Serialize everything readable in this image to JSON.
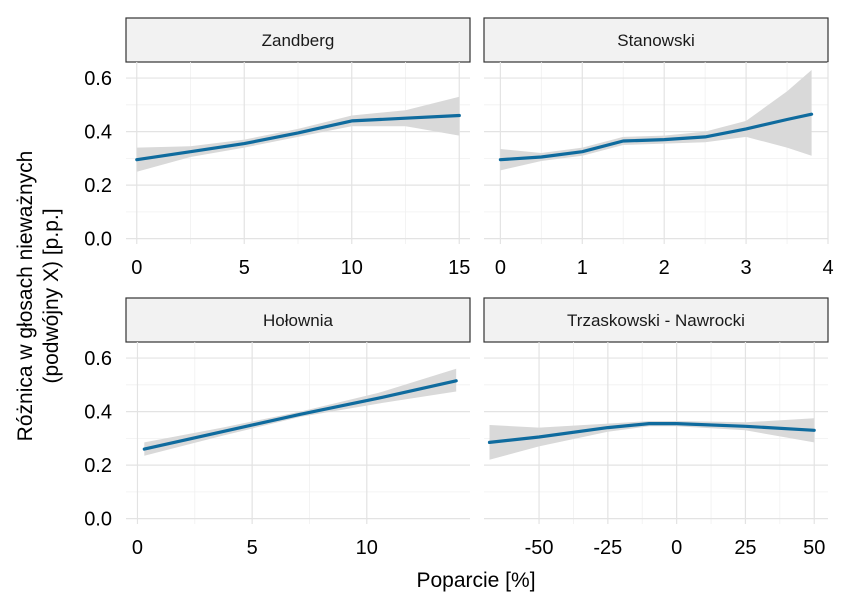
{
  "chart_data": {
    "type": "line",
    "xlabel": "Poparcie [%]",
    "ylabel_lines": [
      "Różnica w głosach nieważnych",
      "(podwójny X) [p.p.]"
    ],
    "line_color": "#0f6b9e",
    "ribbon_color": "#d9d9d9",
    "strip_fill": "#f2f2f2",
    "grid": true,
    "panels": [
      {
        "title": "Zandberg",
        "xlim": [
          -0.5,
          15.5
        ],
        "ylim": [
          -0.02,
          0.66
        ],
        "xticks": [
          0,
          5,
          10,
          15
        ],
        "xtick_labels": [
          "0",
          "5",
          "10",
          "15"
        ],
        "yticks": [
          0.0,
          0.2,
          0.4,
          0.6
        ],
        "ytick_labels": [
          "0.0",
          "0.2",
          "0.4",
          "0.6"
        ],
        "x": [
          0,
          2.5,
          5,
          7.5,
          10,
          12.5,
          15
        ],
        "y": [
          0.295,
          0.325,
          0.355,
          0.395,
          0.44,
          0.45,
          0.46
        ],
        "lower": [
          0.25,
          0.305,
          0.34,
          0.38,
          0.42,
          0.42,
          0.385
        ],
        "upper": [
          0.34,
          0.345,
          0.37,
          0.41,
          0.46,
          0.48,
          0.53
        ]
      },
      {
        "title": "Stanowski",
        "xlim": [
          -0.2,
          4.0
        ],
        "ylim": [
          -0.02,
          0.66
        ],
        "xticks": [
          0,
          1,
          2,
          3,
          4
        ],
        "xtick_labels": [
          "0",
          "1",
          "2",
          "3",
          "4"
        ],
        "yticks": [
          0.0,
          0.2,
          0.4,
          0.6
        ],
        "ytick_labels": [
          "0.0",
          "0.2",
          "0.4",
          "0.6"
        ],
        "x": [
          0,
          0.5,
          1.0,
          1.5,
          2.0,
          2.5,
          3.0,
          3.5,
          3.8
        ],
        "y": [
          0.295,
          0.305,
          0.325,
          0.365,
          0.37,
          0.38,
          0.41,
          0.445,
          0.465
        ],
        "lower": [
          0.255,
          0.29,
          0.31,
          0.35,
          0.355,
          0.36,
          0.38,
          0.34,
          0.31
        ],
        "upper": [
          0.335,
          0.32,
          0.34,
          0.38,
          0.385,
          0.4,
          0.44,
          0.55,
          0.63
        ]
      },
      {
        "title": "Hołownia",
        "xlim": [
          -0.5,
          14.5
        ],
        "ylim": [
          -0.02,
          0.66
        ],
        "xticks": [
          0,
          5,
          10
        ],
        "xtick_labels": [
          "0",
          "5",
          "10"
        ],
        "yticks": [
          0.0,
          0.2,
          0.4,
          0.6
        ],
        "ytick_labels": [
          "0.0",
          "0.2",
          "0.4",
          "0.6"
        ],
        "x": [
          0.3,
          3.7,
          7.1,
          10.5,
          13.9
        ],
        "y": [
          0.26,
          0.325,
          0.39,
          0.45,
          0.515
        ],
        "lower": [
          0.235,
          0.31,
          0.38,
          0.43,
          0.475
        ],
        "upper": [
          0.285,
          0.34,
          0.4,
          0.47,
          0.56
        ]
      },
      {
        "title": "Trzaskowski - Nawrocki",
        "xlim": [
          -70,
          55
        ],
        "ylim": [
          -0.02,
          0.66
        ],
        "xticks": [
          -50,
          -25,
          0,
          25,
          50
        ],
        "xtick_labels": [
          "-50",
          "-25",
          "0",
          "25",
          "50"
        ],
        "yticks": [
          0.0,
          0.2,
          0.4,
          0.6
        ],
        "ytick_labels": [
          "0.0",
          "0.2",
          "0.4",
          "0.6"
        ],
        "x": [
          -68,
          -50,
          -25,
          -10,
          0,
          25,
          50
        ],
        "y": [
          0.285,
          0.305,
          0.34,
          0.355,
          0.355,
          0.345,
          0.33
        ],
        "lower": [
          0.22,
          0.27,
          0.325,
          0.345,
          0.345,
          0.33,
          0.285
        ],
        "upper": [
          0.35,
          0.34,
          0.355,
          0.365,
          0.365,
          0.36,
          0.375
        ]
      }
    ]
  }
}
